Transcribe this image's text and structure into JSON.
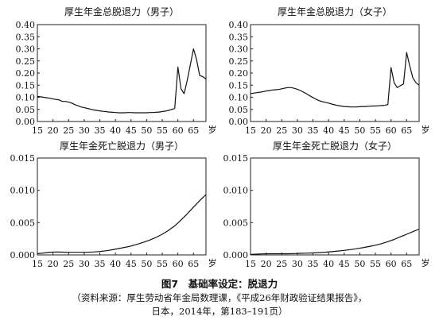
{
  "figure": {
    "title": "图7　基础率设定：脱退力",
    "source_line1": "（资料来源：厚生劳动省年金局数理课，《平成26年财政验证结果报告》，",
    "source_line2": "日本，2014年，第183–191页）"
  },
  "chart_data": [
    {
      "type": "line",
      "title": "厚生年金总脱退力（男子）",
      "x_unit": "岁",
      "xlim": [
        15,
        69
      ],
      "ylim": [
        0,
        0.4
      ],
      "xticks": [
        15,
        20,
        25,
        30,
        35,
        40,
        45,
        50,
        55,
        60,
        65
      ],
      "yticks": [
        0.0,
        0.05,
        0.1,
        0.15,
        0.2,
        0.25,
        0.3,
        0.35,
        0.4
      ],
      "ytick_decimals": 2,
      "grid": false,
      "x": [
        15,
        16,
        17,
        18,
        19,
        20,
        21,
        22,
        23,
        24,
        25,
        26,
        27,
        28,
        29,
        30,
        31,
        32,
        33,
        34,
        35,
        36,
        37,
        38,
        39,
        40,
        41,
        42,
        43,
        44,
        45,
        46,
        47,
        48,
        49,
        50,
        51,
        52,
        53,
        54,
        55,
        56,
        57,
        58,
        59,
        60,
        61,
        62,
        63,
        64,
        65,
        66,
        67,
        68,
        69
      ],
      "values": [
        0.104,
        0.102,
        0.1,
        0.098,
        0.096,
        0.093,
        0.091,
        0.089,
        0.083,
        0.083,
        0.08,
        0.076,
        0.07,
        0.065,
        0.06,
        0.057,
        0.054,
        0.051,
        0.048,
        0.046,
        0.044,
        0.042,
        0.041,
        0.039,
        0.038,
        0.037,
        0.036,
        0.036,
        0.036,
        0.037,
        0.037,
        0.036,
        0.036,
        0.036,
        0.036,
        0.036,
        0.037,
        0.037,
        0.038,
        0.039,
        0.041,
        0.043,
        0.046,
        0.05,
        0.054,
        0.225,
        0.135,
        0.115,
        0.17,
        0.235,
        0.3,
        0.255,
        0.19,
        0.185,
        0.175
      ]
    },
    {
      "type": "line",
      "title": "厚生年金总脱退力（女子）",
      "x_unit": "岁",
      "xlim": [
        15,
        69
      ],
      "ylim": [
        0,
        0.4
      ],
      "xticks": [
        15,
        20,
        25,
        30,
        35,
        40,
        45,
        50,
        55,
        60,
        65
      ],
      "yticks": [
        0.0,
        0.05,
        0.1,
        0.15,
        0.2,
        0.25,
        0.3,
        0.35,
        0.4
      ],
      "ytick_decimals": 2,
      "grid": false,
      "x": [
        15,
        16,
        17,
        18,
        19,
        20,
        21,
        22,
        23,
        24,
        25,
        26,
        27,
        28,
        29,
        30,
        31,
        32,
        33,
        34,
        35,
        36,
        37,
        38,
        39,
        40,
        41,
        42,
        43,
        44,
        45,
        46,
        47,
        48,
        49,
        50,
        51,
        52,
        53,
        54,
        55,
        56,
        57,
        58,
        59,
        60,
        61,
        62,
        63,
        64,
        65,
        66,
        67,
        68,
        69
      ],
      "values": [
        0.115,
        0.117,
        0.119,
        0.121,
        0.123,
        0.126,
        0.128,
        0.13,
        0.131,
        0.132,
        0.135,
        0.138,
        0.14,
        0.14,
        0.137,
        0.133,
        0.128,
        0.121,
        0.114,
        0.106,
        0.099,
        0.092,
        0.086,
        0.082,
        0.079,
        0.076,
        0.072,
        0.069,
        0.066,
        0.064,
        0.062,
        0.061,
        0.06,
        0.06,
        0.06,
        0.061,
        0.062,
        0.062,
        0.063,
        0.064,
        0.064,
        0.065,
        0.066,
        0.067,
        0.07,
        0.223,
        0.16,
        0.14,
        0.148,
        0.155,
        0.285,
        0.23,
        0.18,
        0.16,
        0.15
      ]
    },
    {
      "type": "line",
      "title": "厚生年金死亡脱退力（男子）",
      "x_unit": "岁",
      "xlim": [
        15,
        69
      ],
      "ylim": [
        0,
        0.015
      ],
      "xticks": [
        15,
        20,
        25,
        30,
        35,
        40,
        45,
        50,
        55,
        60,
        65
      ],
      "yticks": [
        0.0,
        0.005,
        0.01,
        0.015
      ],
      "ytick_decimals": 3,
      "grid": false,
      "x": [
        15,
        17,
        19,
        21,
        23,
        25,
        27,
        29,
        31,
        33,
        35,
        37,
        39,
        41,
        43,
        45,
        47,
        49,
        51,
        53,
        55,
        57,
        59,
        61,
        63,
        65,
        67,
        69
      ],
      "values": [
        0.0002,
        0.0003,
        0.00042,
        0.00045,
        0.00043,
        0.0004,
        0.0004,
        0.0004,
        0.00042,
        0.00046,
        0.00053,
        0.00064,
        0.0008,
        0.00098,
        0.00117,
        0.00138,
        0.00165,
        0.00195,
        0.0023,
        0.00272,
        0.0032,
        0.0038,
        0.0045,
        0.0054,
        0.00635,
        0.0074,
        0.0084,
        0.00935
      ]
    },
    {
      "type": "line",
      "title": "厚生年金死亡脱退力（女子）",
      "x_unit": "岁",
      "xlim": [
        15,
        69
      ],
      "ylim": [
        0,
        0.015
      ],
      "xticks": [
        15,
        20,
        25,
        30,
        35,
        40,
        45,
        50,
        55,
        60,
        65
      ],
      "yticks": [
        0.0,
        0.005,
        0.01,
        0.015
      ],
      "ytick_decimals": 3,
      "grid": false,
      "x": [
        15,
        17,
        19,
        21,
        23,
        25,
        27,
        29,
        31,
        33,
        35,
        37,
        39,
        41,
        43,
        45,
        47,
        49,
        51,
        53,
        55,
        57,
        59,
        61,
        63,
        65,
        67,
        69
      ],
      "values": [
        8e-05,
        0.00012,
        0.00016,
        0.00018,
        0.00018,
        0.00018,
        0.00019,
        0.00021,
        0.00024,
        0.00027,
        0.00031,
        0.00036,
        0.00042,
        0.0005,
        0.0006,
        0.0007,
        0.00082,
        0.00096,
        0.00112,
        0.0013,
        0.0015,
        0.00175,
        0.00205,
        0.0024,
        0.0028,
        0.0032,
        0.0036,
        0.004
      ]
    }
  ]
}
